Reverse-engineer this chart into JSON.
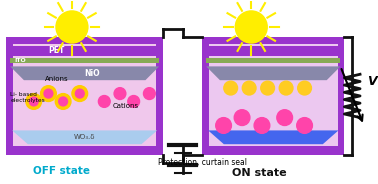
{
  "bg_color": "#ffffff",
  "purple_color": "#9933cc",
  "green_color": "#88aa55",
  "pink_bg_left": "#f0c8ec",
  "pink_bg_right": "#ecc8f0",
  "gray_nio": "#8888aa",
  "wo3_color_left": "#aaccee",
  "wo3_color_right": "#4466ee",
  "sun_color": "#ffee00",
  "anion_outer": "#ffcc00",
  "anion_inner": "#ff44aa",
  "cation_color": "#ff44aa",
  "yellow_dot": "#ffcc22",
  "wire_color": "#111111",
  "text_off": "OFF state",
  "text_on": "ON state",
  "text_off_color": "#00aacc",
  "text_on_color": "#111111",
  "text_protection": "Protection, curtain seal",
  "label_pet": "PET",
  "label_ito": "ITO",
  "label_nio": "NiO",
  "label_wo3": "WO₃.δ",
  "label_anions": "Anions",
  "label_cations": "Cations",
  "label_li": "Li- based\nelectrolytes",
  "label_V": "V"
}
